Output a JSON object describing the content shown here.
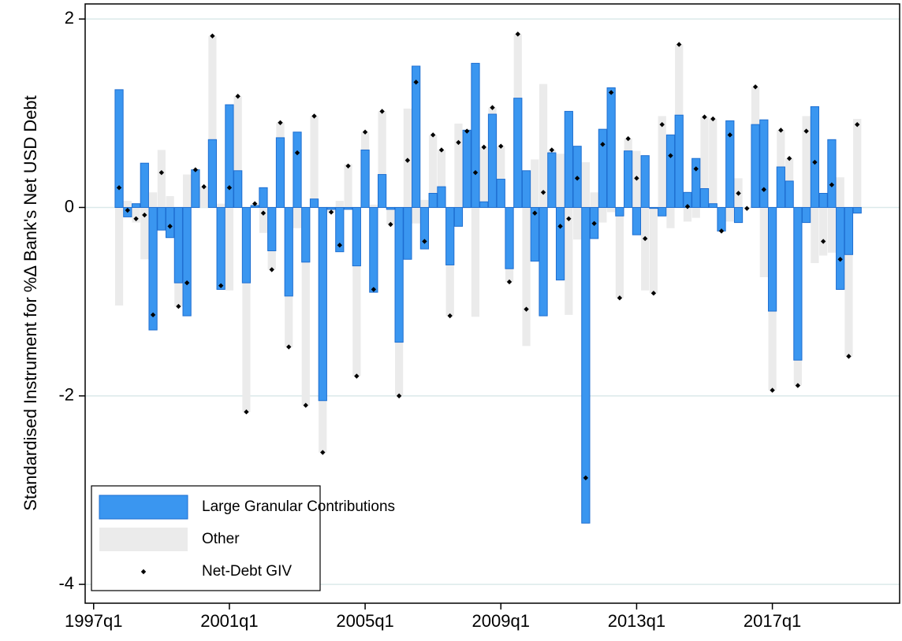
{
  "chart_data": {
    "type": "bar",
    "ylabel": "Standardised Instrument for %Δ Bank's Net USD Debt",
    "x": [
      "1997q4",
      "1998q1",
      "1998q2",
      "1998q3",
      "1998q4",
      "1999q1",
      "1999q2",
      "1999q3",
      "1999q4",
      "2000q1",
      "2000q2",
      "2000q3",
      "2000q4",
      "2001q1",
      "2001q2",
      "2001q3",
      "2001q4",
      "2002q1",
      "2002q2",
      "2002q3",
      "2002q4",
      "2003q1",
      "2003q2",
      "2003q3",
      "2003q4",
      "2004q1",
      "2004q2",
      "2004q3",
      "2004q4",
      "2005q1",
      "2005q2",
      "2005q3",
      "2005q4",
      "2006q1",
      "2006q2",
      "2006q3",
      "2006q4",
      "2007q1",
      "2007q2",
      "2007q3",
      "2007q4",
      "2008q1",
      "2008q2",
      "2008q3",
      "2008q4",
      "2009q1",
      "2009q2",
      "2009q3",
      "2009q4",
      "2010q1",
      "2010q2",
      "2010q3",
      "2010q4",
      "2011q1",
      "2011q2",
      "2011q3",
      "2011q4",
      "2012q1",
      "2012q2",
      "2012q3",
      "2012q4",
      "2013q1",
      "2013q2",
      "2013q3",
      "2013q4",
      "2014q1",
      "2014q2",
      "2014q3",
      "2014q4",
      "2015q1",
      "2015q2",
      "2015q3",
      "2015q4",
      "2016q1",
      "2016q2",
      "2016q3",
      "2016q4",
      "2017q1",
      "2017q2",
      "2017q3",
      "2017q4",
      "2018q1",
      "2018q2",
      "2018q3",
      "2018q4",
      "2019q1",
      "2019q2",
      "2019q3"
    ],
    "series": [
      {
        "name": "Large Granular Contributions",
        "color": "#3a96f0",
        "values": [
          1.25,
          -0.1,
          0.04,
          0.47,
          -1.3,
          -0.24,
          -0.32,
          -0.8,
          -1.15,
          0.4,
          0,
          0.72,
          -0.87,
          1.09,
          0.39,
          -0.8,
          0.02,
          0.21,
          -0.46,
          0.74,
          -0.94,
          0.8,
          -0.58,
          0.09,
          -2.05,
          -0.02,
          -0.47,
          -0.02,
          -0.62,
          0.61,
          -0.9,
          0.35,
          -0.02,
          -1.43,
          -0.55,
          1.5,
          -0.44,
          0.15,
          0.22,
          -0.61,
          -0.2,
          0.82,
          1.53,
          0.06,
          0.99,
          0.3,
          -0.65,
          1.16,
          0.39,
          -0.57,
          -1.15,
          0.58,
          -0.77,
          1.02,
          0.65,
          -3.35,
          -0.33,
          0.83,
          1.27,
          -0.09,
          0.6,
          -0.29,
          0.55,
          -0.01,
          -0.09,
          0.77,
          0.98,
          0.16,
          0.52,
          0.2,
          0.04,
          -0.25,
          0.92,
          -0.16,
          0,
          0.88,
          0.93,
          -1.1,
          0.43,
          0.28,
          -1.62,
          -0.16,
          1.07,
          0.15,
          0.72,
          -0.87,
          -0.5,
          -0.06
        ]
      },
      {
        "name": "Other",
        "color": "#ebebeb",
        "values": [
          -1.04,
          0.07,
          -0.16,
          -0.55,
          0.16,
          0.61,
          0.12,
          -0.25,
          0.35,
          0,
          0.22,
          1.1,
          0.04,
          -0.88,
          0.79,
          -1.37,
          0.02,
          -0.27,
          -0.2,
          0.16,
          -0.54,
          -0.22,
          -1.52,
          0.88,
          -0.55,
          -0.03,
          0.07,
          0.46,
          -1.17,
          0.19,
          0.03,
          0.67,
          -0.16,
          -0.57,
          1.05,
          -0.17,
          0.08,
          0.62,
          0.39,
          -0.54,
          0.89,
          -0.01,
          -1.16,
          0.58,
          0.07,
          0.35,
          -0.14,
          0.68,
          -1.47,
          0.51,
          1.31,
          0.03,
          0.57,
          -1.14,
          -0.34,
          0.48,
          0.16,
          -0.16,
          -0.05,
          -0.87,
          0.13,
          0.6,
          -0.88,
          -0.9,
          0.97,
          -0.22,
          0.75,
          -0.15,
          -0.11,
          0.76,
          0.9,
          0,
          -0.15,
          0.31,
          -0.01,
          0.4,
          -0.74,
          -0.84,
          0.39,
          0.24,
          -0.27,
          0.97,
          -0.59,
          -0.51,
          -0.48,
          0.32,
          -1.08,
          0.94
        ]
      },
      {
        "name": "Net-Debt GIV",
        "color": "#000000",
        "values": [
          0.21,
          -0.03,
          -0.12,
          -0.08,
          -1.14,
          0.37,
          -0.2,
          -1.05,
          -0.8,
          0.4,
          0.22,
          1.82,
          -0.83,
          0.21,
          1.18,
          -2.17,
          0.04,
          -0.06,
          -0.66,
          0.9,
          -1.48,
          0.58,
          -2.1,
          0.97,
          -2.6,
          -0.05,
          -0.4,
          0.44,
          -1.79,
          0.8,
          -0.87,
          1.02,
          -0.18,
          -2.0,
          0.5,
          1.33,
          -0.36,
          0.77,
          0.61,
          -1.15,
          0.69,
          0.81,
          0.37,
          0.64,
          1.06,
          0.65,
          -0.79,
          1.84,
          -1.08,
          -0.06,
          0.16,
          0.61,
          -0.2,
          -0.12,
          0.31,
          -2.87,
          -0.17,
          0.67,
          1.22,
          -0.96,
          0.73,
          0.31,
          -0.33,
          -0.91,
          0.88,
          0.55,
          1.73,
          0.01,
          0.41,
          0.96,
          0.94,
          -0.25,
          0.77,
          0.15,
          -0.01,
          1.28,
          0.19,
          -1.94,
          0.82,
          0.52,
          -1.89,
          0.81,
          0.48,
          -0.36,
          0.24,
          -0.55,
          -1.58,
          0.88
        ]
      }
    ],
    "xlim": [
      "1996q4",
      "2020q4"
    ],
    "xticks": [
      "1997q1",
      "2001q1",
      "2005q1",
      "2009q1",
      "2013q1",
      "2017q1"
    ],
    "ylim": [
      -4.2,
      2.16
    ],
    "yticks": [
      -4,
      -2,
      0,
      2
    ],
    "grid": true,
    "legend": "lower left"
  }
}
